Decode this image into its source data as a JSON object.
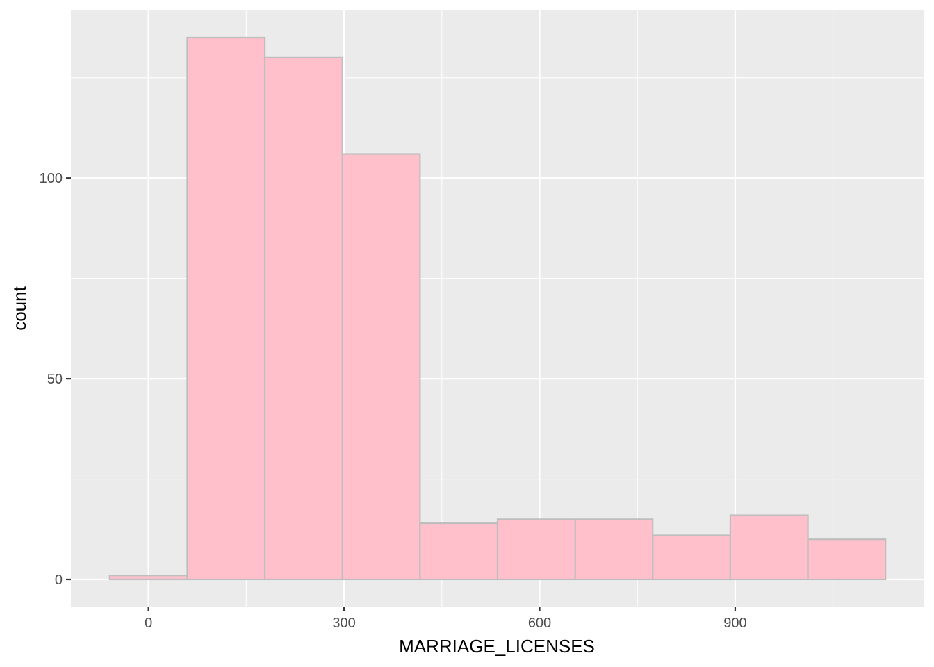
{
  "chart_data": {
    "type": "bar",
    "xlabel": "MARRIAGE_LICENSES",
    "ylabel": "count",
    "bins": [
      {
        "x_start": -59.5,
        "x_end": 59.5,
        "count": 1
      },
      {
        "x_start": 59.5,
        "x_end": 178.5,
        "count": 135
      },
      {
        "x_start": 178.5,
        "x_end": 297.5,
        "count": 130
      },
      {
        "x_start": 297.5,
        "x_end": 416.5,
        "count": 106
      },
      {
        "x_start": 416.5,
        "x_end": 535.5,
        "count": 14
      },
      {
        "x_start": 535.5,
        "x_end": 654.5,
        "count": 15
      },
      {
        "x_start": 654.5,
        "x_end": 773.5,
        "count": 15
      },
      {
        "x_start": 773.5,
        "x_end": 892.5,
        "count": 11
      },
      {
        "x_start": 892.5,
        "x_end": 1011.5,
        "count": 16
      },
      {
        "x_start": 1011.5,
        "x_end": 1130.5,
        "count": 10
      }
    ],
    "x_ticks": [
      0,
      300,
      600,
      900
    ],
    "y_ticks": [
      0,
      50,
      100
    ],
    "xlim": [
      -119,
      1190
    ],
    "ylim": [
      -6.75,
      141.75
    ],
    "grid": true,
    "colors": {
      "panel_background": "#ebebeb",
      "grid": "#ffffff",
      "bar_fill": "#ffc0cb",
      "bar_outline": "#bebebe",
      "tick_label": "#4d4d4d",
      "axis_title": "#000000"
    }
  }
}
